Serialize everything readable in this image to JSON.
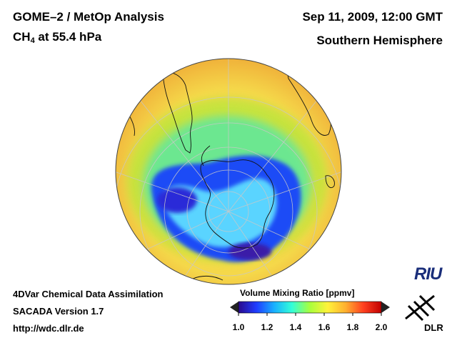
{
  "header": {
    "title_line1": "GOME–2 / MetOp Analysis",
    "species_main": "CH",
    "species_sub": "4",
    "species_rest": " at 55.4 hPa",
    "datetime": "Sep 11, 2009, 12:00 GMT",
    "region": "Southern Hemisphere"
  },
  "footer": {
    "line1": "4DVar Chemical Data Assimilation",
    "line2": "SACADA Version 1.7",
    "line3": "http://wdc.dlr.de"
  },
  "colorbar": {
    "title": "Volume Mixing Ratio [ppmv]",
    "ticks": [
      "1.0",
      "1.2",
      "1.4",
      "1.6",
      "1.8",
      "2.0"
    ],
    "min": 1.0,
    "max": 2.0,
    "colors": [
      "#2a0a8c",
      "#1f3cff",
      "#18b0ff",
      "#33ffd8",
      "#a8ff3c",
      "#fff23a",
      "#ffb030",
      "#ff4020",
      "#c00000"
    ]
  },
  "map": {
    "projection": "orthographic-south-polar",
    "field_colors": {
      "vortex_core": "#1a3cf0",
      "vortex_inner": "#58d8ff",
      "ring": "#38e6a0",
      "outer": "#f5d84a",
      "edge": "#f0b23a"
    }
  },
  "logos": {
    "riu": "RIU",
    "dlr": "DLR"
  }
}
